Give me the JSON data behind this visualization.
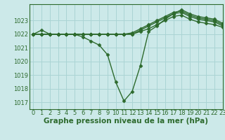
{
  "xlabel": "Graphe pression niveau de la mer (hPa)",
  "background_color": "#cce9e9",
  "grid_color": "#aad4d4",
  "line_color": "#2d6a2d",
  "xlim": [
    -0.5,
    23
  ],
  "ylim": [
    1016.5,
    1024.2
  ],
  "yticks": [
    1017,
    1018,
    1019,
    1020,
    1021,
    1022,
    1023
  ],
  "xticks": [
    0,
    1,
    2,
    3,
    4,
    5,
    6,
    7,
    8,
    9,
    10,
    11,
    12,
    13,
    14,
    15,
    16,
    17,
    18,
    19,
    20,
    21,
    22,
    23
  ],
  "series": [
    [
      1022.0,
      1022.3,
      1022.0,
      1022.0,
      1022.0,
      1022.0,
      1021.8,
      1021.5,
      1021.2,
      1020.5,
      1018.5,
      1017.1,
      1017.8,
      1019.7,
      1022.2,
      1022.6,
      1023.1,
      1023.5,
      1023.8,
      1023.5,
      1023.3,
      1023.2,
      1023.1,
      1022.8
    ],
    [
      1022.0,
      1022.0,
      1022.0,
      1022.0,
      1022.0,
      1022.0,
      1022.0,
      1022.0,
      1022.0,
      1022.0,
      1022.0,
      1022.0,
      1022.1,
      1022.4,
      1022.7,
      1023.0,
      1023.3,
      1023.6,
      1023.7,
      1023.4,
      1023.2,
      1023.1,
      1023.0,
      1022.7
    ],
    [
      1022.0,
      1022.0,
      1022.0,
      1022.0,
      1022.0,
      1022.0,
      1022.0,
      1022.0,
      1022.0,
      1022.0,
      1022.0,
      1022.0,
      1022.0,
      1022.3,
      1022.6,
      1022.9,
      1023.2,
      1023.5,
      1023.6,
      1023.3,
      1023.1,
      1023.0,
      1022.9,
      1022.6
    ],
    [
      1022.0,
      1022.0,
      1022.0,
      1022.0,
      1022.0,
      1022.0,
      1022.0,
      1022.0,
      1022.0,
      1022.0,
      1022.0,
      1022.0,
      1022.0,
      1022.2,
      1022.4,
      1022.7,
      1023.0,
      1023.3,
      1023.4,
      1023.1,
      1022.9,
      1022.8,
      1022.7,
      1022.5
    ]
  ],
  "marker": "D",
  "marker_size": 2.5,
  "line_width": 1.0,
  "xlabel_fontsize": 7.5,
  "tick_fontsize": 6.0
}
